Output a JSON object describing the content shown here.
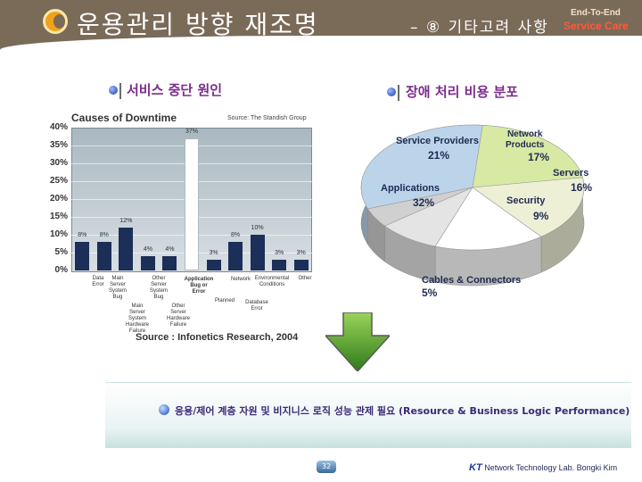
{
  "header": {
    "title": "운용관리 방향 재조명",
    "subtitle": "– ⑧ 기타고려 사항",
    "brand_line1": "End-To-End",
    "brand_line2": "Service Care"
  },
  "left_section": {
    "heading": "서비스 중단 원인",
    "source": "Source : Infonetics Research, 2004"
  },
  "right_section": {
    "heading": "장애 처리 비용 분포"
  },
  "bottom": {
    "text": "응용/제어 계층 자원 및 비지니스 로직 성능 관제 필요 (Resource & Business Logic Performance)"
  },
  "footer": {
    "page_number": "32",
    "logo": "KT",
    "text": "Network Technology Lab. Bongki Kim"
  },
  "chart_data": [
    {
      "type": "bar",
      "title": "Causes of Downtime",
      "source_note": "Source: The Standish Group",
      "ylim": [
        0,
        40
      ],
      "ytick_labels": [
        "40%",
        "35%",
        "30%",
        "25%",
        "20%",
        "15%",
        "10%",
        "5%",
        "0%"
      ],
      "categories": [
        "Data Error",
        "Main Server System Bug",
        "Main Server System Hardware Failure",
        "Other Server System Bug",
        "Other Server Hardware Failure",
        "Application Bug or Error",
        "Planned",
        "Network",
        "Environmental Conditions",
        "Database Error",
        "Other"
      ],
      "values": [
        8,
        8,
        12,
        4,
        4,
        37,
        3,
        8,
        10,
        3,
        3
      ],
      "value_labels": [
        "8%",
        "8%",
        "12%",
        "4%",
        "4%",
        "37%",
        "3%",
        "8%",
        "10%",
        "3%",
        "3%"
      ]
    },
    {
      "type": "pie",
      "labels": [
        "Applications",
        "Service Providers",
        "Network Products",
        "Servers",
        "Security",
        "Cables & Connectors"
      ],
      "values": [
        32,
        21,
        17,
        16,
        9,
        5
      ],
      "value_labels": [
        "32%",
        "21%",
        "17%",
        "16%",
        "9%",
        "5%"
      ],
      "colors": [
        "#bcd4ea",
        "#d8e9a4",
        "#eef0d6",
        "#ffffff",
        "#e4e4e4",
        "#d0d0d0"
      ]
    }
  ]
}
